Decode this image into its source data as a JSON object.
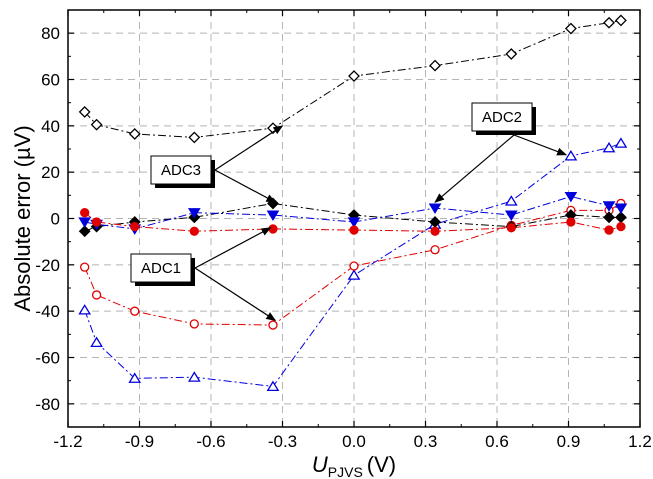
{
  "chart_data": {
    "type": "scatter",
    "xlabel_main": "U",
    "xlabel_sub": "PJVS",
    "xlabel_unit": "(V)",
    "ylabel": "Absolute error (µV)",
    "xlim": [
      -1.2,
      1.2
    ],
    "ylim": [
      -90,
      90
    ],
    "xticks": [
      -1.2,
      -0.9,
      -0.6,
      -0.3,
      0.0,
      0.3,
      0.6,
      0.9,
      1.2
    ],
    "xtick_labels": [
      "-1.2",
      "-0.9",
      "-0.6",
      "-0.3",
      "0.0",
      "0.3",
      "0.6",
      "0.9",
      "1.2"
    ],
    "yticks": [
      -80,
      -60,
      -40,
      -20,
      0,
      20,
      40,
      60,
      80
    ],
    "ytick_labels": [
      "-80",
      "-60",
      "-40",
      "-20",
      "0",
      "20",
      "40",
      "60",
      "80"
    ],
    "grid": true,
    "series": [
      {
        "marker": "diamond-open",
        "color": "#000000",
        "x": [
          -1.13,
          -1.08,
          -0.92,
          -0.67,
          -0.34,
          0.0,
          0.34,
          0.66,
          0.91,
          1.07,
          1.12
        ],
        "y": [
          46,
          40.5,
          36.5,
          35,
          39,
          61.5,
          66,
          71,
          82,
          84.5,
          85.5
        ]
      },
      {
        "marker": "triangle-open",
        "color": "#0000dd",
        "x": [
          -1.13,
          -1.08,
          -0.92,
          -0.67,
          -0.34,
          0.0,
          0.34,
          0.66,
          0.91,
          1.07,
          1.12
        ],
        "y": [
          -39.5,
          -53.5,
          -69,
          -68.5,
          -72.5,
          -24.5,
          -2.5,
          7.5,
          27,
          30.5,
          32.5
        ]
      },
      {
        "marker": "circle-open",
        "color": "#e00000",
        "x": [
          -1.13,
          -1.08,
          -0.92,
          -0.67,
          -0.34,
          0.0,
          0.34,
          0.66,
          0.91,
          1.07,
          1.12
        ],
        "y": [
          -21,
          -33,
          -40,
          -45.5,
          -46,
          -20.5,
          -13.5,
          -3,
          3.5,
          3.5,
          6.5
        ]
      },
      {
        "marker": "diamond-filled",
        "color": "#000000",
        "x": [
          -1.13,
          -1.08,
          -0.92,
          -0.67,
          -0.34,
          0.0,
          0.34,
          0.66,
          0.91,
          1.07,
          1.12
        ],
        "y": [
          -5.5,
          -3.5,
          -1.5,
          0.5,
          6.5,
          1.5,
          -1.5,
          -3.5,
          1.5,
          0.5,
          0.5
        ]
      },
      {
        "marker": "triangle-filled",
        "color": "#0000dd",
        "x": [
          -1.13,
          -1.08,
          -0.92,
          -0.67,
          -0.34,
          0.0,
          0.34,
          0.66,
          0.91,
          1.07,
          1.12
        ],
        "y": [
          -1.5,
          -2.5,
          -4.5,
          2.5,
          1.5,
          -1.5,
          4.5,
          1.5,
          9.5,
          5.5,
          4.5
        ]
      },
      {
        "marker": "circle-filled",
        "color": "#e00000",
        "x": [
          -1.13,
          -1.08,
          -0.92,
          -0.67,
          -0.34,
          0.0,
          0.34,
          0.66,
          0.91,
          1.07,
          1.12
        ],
        "y": [
          2.5,
          -1.5,
          -3.5,
          -5.5,
          -4.5,
          -5,
          -5.5,
          -4,
          -1.5,
          -5,
          -3.5
        ]
      }
    ],
    "annotations": [
      {
        "text": "ADC3",
        "targets": [
          [
            -0.3,
            40
          ],
          [
            -0.33,
            7
          ]
        ]
      },
      {
        "text": "ADC1",
        "targets": [
          [
            -0.35,
            -4
          ],
          [
            -0.33,
            -44
          ]
        ]
      },
      {
        "text": "ADC2",
        "targets": [
          [
            0.89,
            27.5
          ],
          [
            0.34,
            7
          ]
        ]
      }
    ]
  }
}
